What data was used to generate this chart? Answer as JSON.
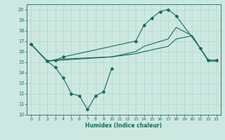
{
  "bg_color": "#cde8e0",
  "grid_color": "#b0d8ce",
  "line_color": "#1a6b5e",
  "xlabel": "Humidex (Indice chaleur)",
  "ylim": [
    10,
    20.5
  ],
  "xlim": [
    -0.5,
    23.5
  ],
  "yticks": [
    10,
    11,
    12,
    13,
    14,
    15,
    16,
    17,
    18,
    19,
    20
  ],
  "xticks": [
    0,
    1,
    2,
    3,
    4,
    5,
    6,
    7,
    8,
    9,
    10,
    11,
    12,
    13,
    14,
    15,
    16,
    17,
    18,
    19,
    20,
    21,
    22,
    23
  ],
  "line1_x": [
    0,
    2,
    3,
    4,
    5,
    6,
    7,
    8,
    9,
    10
  ],
  "line1_y": [
    16.7,
    15.1,
    14.5,
    13.5,
    12.0,
    11.8,
    10.5,
    11.8,
    12.2,
    14.4
  ],
  "line2_x": [
    0,
    2,
    3,
    4,
    13,
    14,
    15,
    16,
    17,
    18,
    21,
    22,
    23
  ],
  "line2_y": [
    16.7,
    15.1,
    15.2,
    15.5,
    17.0,
    18.5,
    19.2,
    19.8,
    20.0,
    19.4,
    16.3,
    15.2,
    15.2
  ],
  "line3_x": [
    0,
    2,
    4,
    10,
    13,
    14,
    17,
    18,
    20,
    22,
    23
  ],
  "line3_y": [
    16.7,
    15.1,
    15.3,
    15.5,
    15.8,
    16.0,
    16.5,
    17.2,
    17.5,
    15.1,
    15.1
  ],
  "line4_x": [
    0,
    2,
    4,
    10,
    13,
    14,
    17,
    18,
    20,
    22,
    23
  ],
  "line4_y": [
    16.7,
    15.1,
    15.2,
    15.5,
    16.0,
    16.5,
    17.2,
    18.3,
    17.5,
    15.1,
    15.1
  ]
}
